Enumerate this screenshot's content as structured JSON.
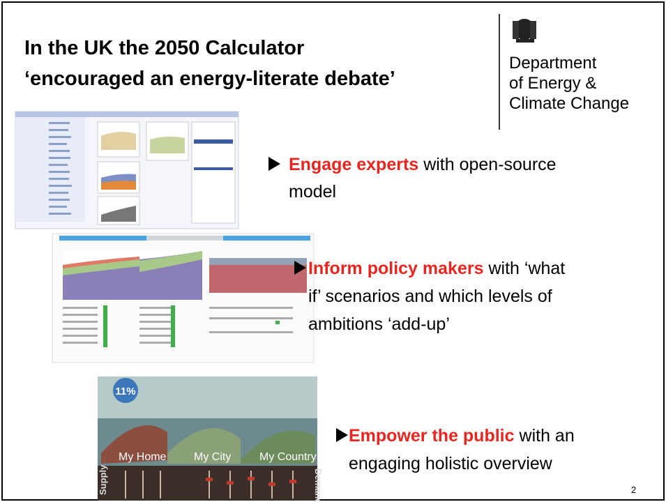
{
  "slide": {
    "title": [
      "In the UK the 2050 Calculator",
      "‘encouraged an energy-literate debate’"
    ],
    "logo": [
      "Department",
      "of Energy &",
      "Climate Change"
    ],
    "bullets": [
      {
        "lead": "Engage experts",
        "lines": [
          "with open-source",
          "model"
        ]
      },
      {
        "lead": "Inform policy makers",
        "lines": [
          "with ‘what",
          "if’ scenarios and which levels of",
          "ambitions ‘add-up’"
        ]
      },
      {
        "lead": "Empower the public",
        "lines": [
          "with an",
          "engaging holistic overview"
        ]
      }
    ],
    "game": {
      "score": "11%",
      "places": [
        "My Home",
        "My City",
        "My Country"
      ],
      "supply": "Supply",
      "demand": "Demand"
    },
    "page_number": "2"
  }
}
